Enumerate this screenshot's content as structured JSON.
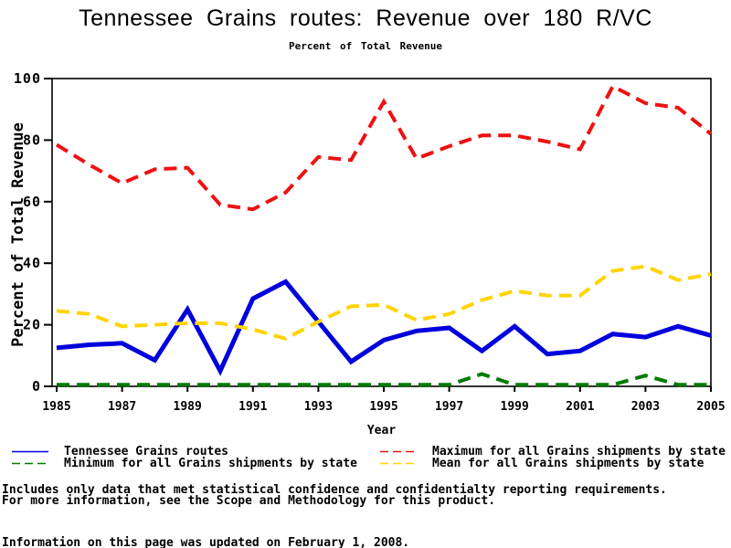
{
  "page": {
    "title": "Tennessee Grains routes: Revenue over 180 R/VC",
    "subtitle": "Percent of Total Revenue"
  },
  "chart_data": {
    "type": "line",
    "title": "Tennessee Grains routes: Revenue over 180 R/VC",
    "subtitle": "Percent of Total Revenue",
    "xlabel": "Year",
    "ylabel": "Percent of Total Revenue",
    "xlim": [
      1985,
      2005
    ],
    "ylim": [
      0,
      100
    ],
    "x_ticks": [
      1985,
      1987,
      1989,
      1991,
      1993,
      1995,
      1997,
      1999,
      2001,
      2003,
      2005
    ],
    "y_ticks": [
      0,
      20,
      40,
      60,
      80,
      100
    ],
    "grid": false,
    "legend_position": "bottom-two-columns",
    "x": [
      1985,
      1986,
      1987,
      1988,
      1989,
      1990,
      1991,
      1992,
      1993,
      1994,
      1995,
      1996,
      1997,
      1998,
      1999,
      2000,
      2001,
      2002,
      2003,
      2004,
      2005
    ],
    "series": [
      {
        "id": "tennessee-grains-routes",
        "name": "Tennessee Grains routes",
        "color": "#0000DD",
        "style": "solid",
        "width": 5,
        "values": [
          12.5,
          13.5,
          14,
          8.5,
          25,
          5,
          28.5,
          34,
          21,
          8,
          15,
          18,
          19,
          11.5,
          19.5,
          10.5,
          11.5,
          17,
          16,
          19.5,
          16.5
        ]
      },
      {
        "id": "maximum-all-grains",
        "name": "Maximum for all Grains shipments by state",
        "color": "#EE1111",
        "style": "dashed",
        "width": 4,
        "values": [
          78.5,
          72,
          66,
          70.5,
          71,
          59,
          57.5,
          63,
          74.5,
          73.5,
          92.5,
          74,
          78,
          81.5,
          81.5,
          79.5,
          77,
          97.5,
          92,
          90.5,
          82
        ]
      },
      {
        "id": "minimum-all-grains",
        "name": "Minimum for all Grains shipments by state",
        "color": "#007A00",
        "style": "dashed",
        "width": 4,
        "values": [
          0.5,
          0.5,
          0.5,
          0.5,
          0.5,
          0.5,
          0.5,
          0.5,
          0.5,
          0.5,
          0.5,
          0.5,
          0.5,
          4,
          0.5,
          0.5,
          0.5,
          0.5,
          3.5,
          0.5,
          0.5
        ]
      },
      {
        "id": "mean-all-grains",
        "name": "Mean for all Grains shipments by state",
        "color": "#FFD400",
        "style": "dashed",
        "width": 4,
        "values": [
          24.5,
          23.5,
          19.5,
          20,
          20.5,
          20.5,
          18.5,
          15.5,
          21,
          26,
          26.5,
          21.5,
          23.5,
          28,
          31,
          29.5,
          29.5,
          37.5,
          39,
          34.5,
          36.5
        ]
      }
    ]
  },
  "footer": {
    "line1": "Includes only data that met statistical confidence and confidentialty reporting requirements.",
    "line2": "For more information, see the Scope and Methodology for this product.",
    "line3": "Information on this page was updated on February 1, 2008."
  }
}
